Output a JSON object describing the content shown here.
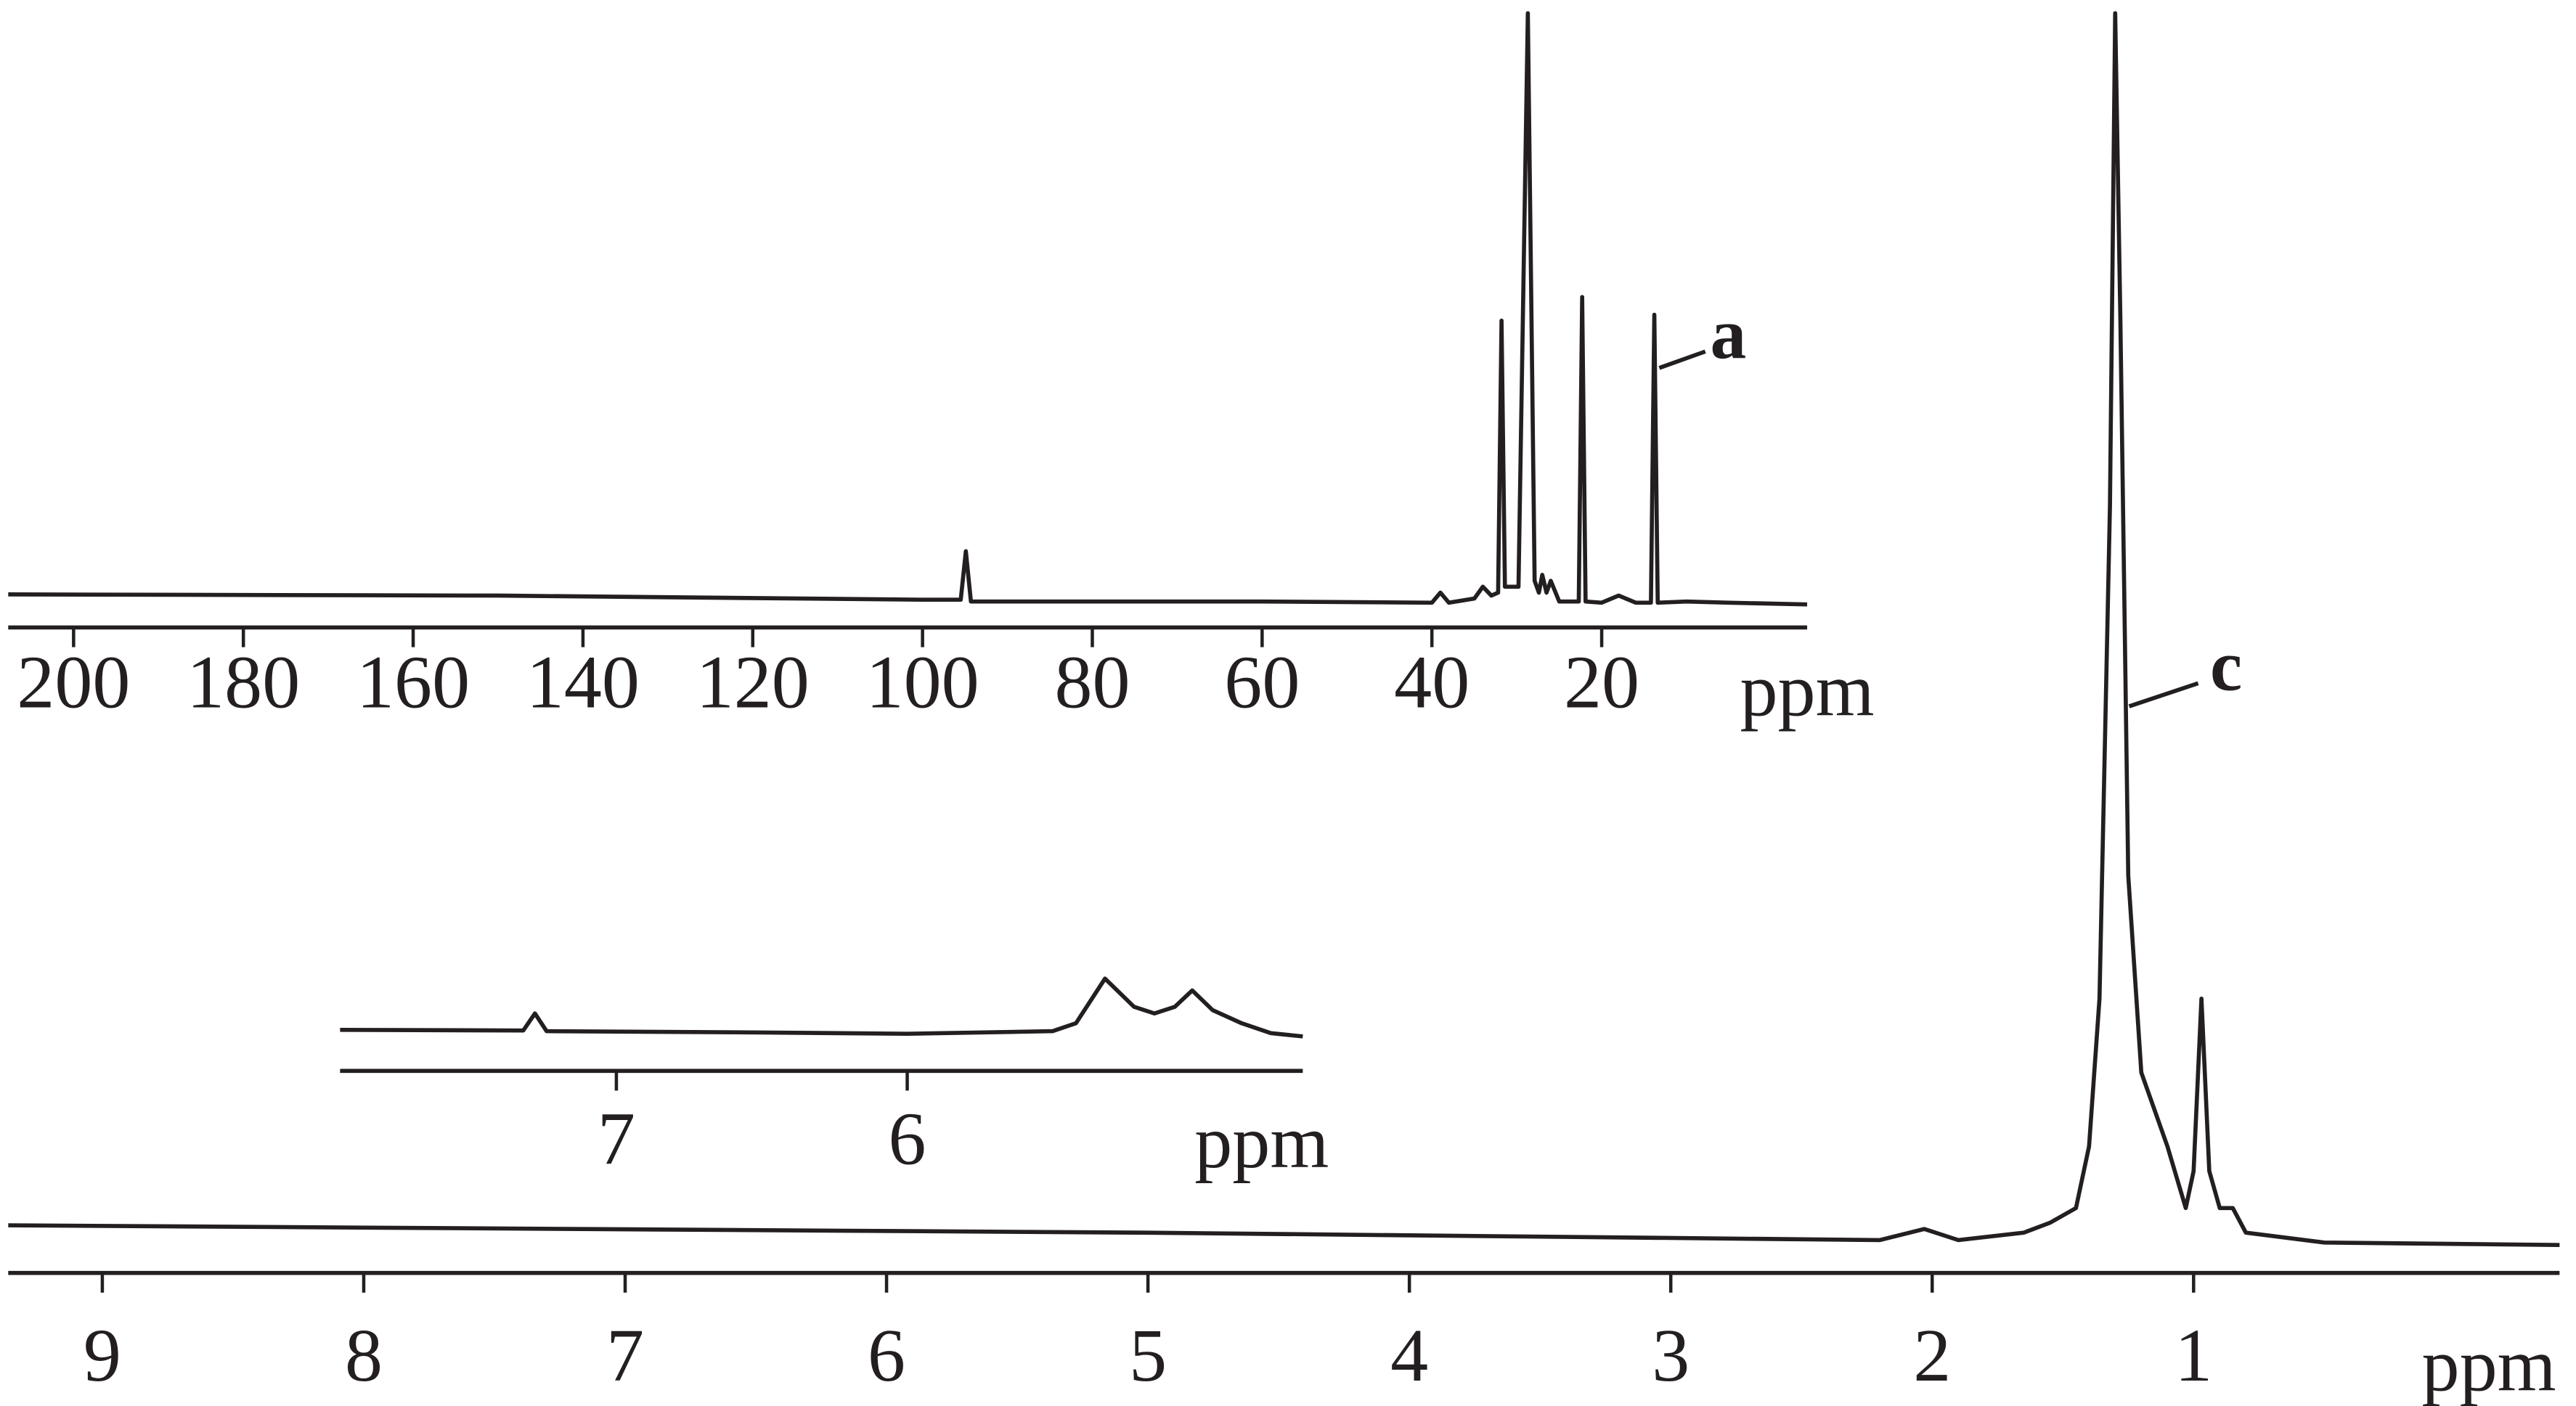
{
  "chart_data": [
    {
      "type": "line",
      "x_label": "ppm",
      "annotation": "a",
      "color": "#231f20",
      "xlim": [
        207.7,
        -4.2
      ],
      "xticks": [
        200,
        180,
        160,
        140,
        120,
        100,
        80,
        60,
        40,
        20
      ],
      "ylim": [
        0,
        100
      ],
      "x": [
        207.7,
        150,
        100,
        95.5,
        94.9,
        94.3,
        60,
        40,
        39,
        38,
        35,
        34,
        33,
        32.2,
        31.8,
        31.4,
        30.6,
        29.8,
        28.7,
        27.9,
        27.4,
        27,
        26.5,
        26,
        25,
        22.7,
        22.3,
        21.9,
        20,
        18,
        16,
        14.2,
        13.8,
        13.4,
        10,
        5,
        -4.2
      ],
      "values": [
        1.7,
        1.5,
        0.8,
        0.8,
        9,
        0.5,
        0.5,
        0.3,
        2,
        0.3,
        1,
        3,
        1.5,
        2,
        48,
        3,
        3,
        3,
        100,
        4,
        2,
        5,
        2,
        4,
        0.5,
        0.5,
        52,
        0.5,
        0.3,
        1.5,
        0.3,
        0.3,
        49,
        0.3,
        0.5,
        0.3,
        0
      ]
    },
    {
      "type": "line",
      "x_label": "ppm",
      "annotation": "c",
      "color": "#231f20",
      "xlim": [
        9.36,
        -0.4
      ],
      "xticks": [
        9,
        8,
        7,
        6,
        5,
        4,
        3,
        2,
        1
      ],
      "ylim": [
        0,
        100
      ],
      "x": [
        9.36,
        5,
        2.2,
        2.03,
        1.9,
        1.65,
        1.55,
        1.45,
        1.4,
        1.36,
        1.32,
        1.3,
        1.28,
        1.25,
        1.2,
        1.1,
        1.03,
        1.0,
        0.97,
        0.94,
        0.9,
        0.85,
        0.8,
        0.5,
        -0.4
      ],
      "values": [
        1.6,
        1.0,
        0.4,
        1.3,
        0.4,
        1.0,
        1.8,
        3,
        8,
        20,
        60,
        100,
        75,
        30,
        14,
        8,
        3,
        6,
        20,
        6,
        3,
        3,
        1,
        0.2,
        0
      ]
    },
    {
      "type": "line",
      "x_label": "ppm",
      "color": "#231f20",
      "xlim": [
        7.95,
        4.64
      ],
      "xticks": [
        7,
        6
      ],
      "ylim": [
        0,
        100
      ],
      "x": [
        7.95,
        7.32,
        7.28,
        7.24,
        6.5,
        6.0,
        5.5,
        5.42,
        5.32,
        5.22,
        5.15,
        5.08,
        5.02,
        4.95,
        4.85,
        4.75,
        4.64
      ],
      "values": [
        10,
        9,
        35,
        8,
        6,
        4,
        8,
        20,
        88,
        45,
        35,
        45,
        70,
        40,
        20,
        5,
        0
      ]
    }
  ]
}
